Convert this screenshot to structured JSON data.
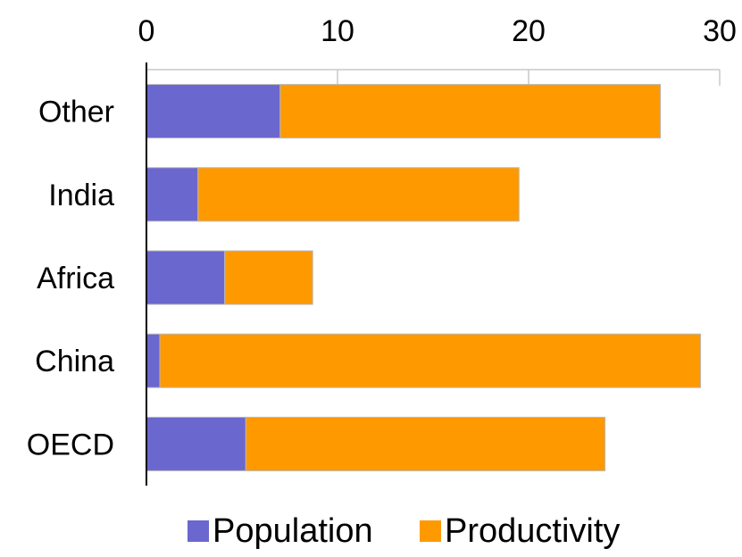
{
  "chart_data": {
    "type": "bar",
    "orientation": "horizontal",
    "stacked": true,
    "categories": [
      "Other",
      "India",
      "Africa",
      "China",
      "OECD"
    ],
    "series": [
      {
        "name": "Population",
        "values": [
          7,
          2.7,
          4.1,
          0.7,
          5.2
        ],
        "color": "#6a67ce"
      },
      {
        "name": "Productivity",
        "values": [
          19.9,
          16.8,
          4.6,
          28.3,
          18.8
        ],
        "color": "#ff9900"
      }
    ],
    "title": "",
    "xlabel": "",
    "ylabel": "",
    "xlim": [
      0,
      30
    ],
    "xticks": [
      "0",
      "10",
      "20",
      "30"
    ],
    "x_axis_position": "top",
    "grid": true,
    "legend_position": "bottom"
  }
}
